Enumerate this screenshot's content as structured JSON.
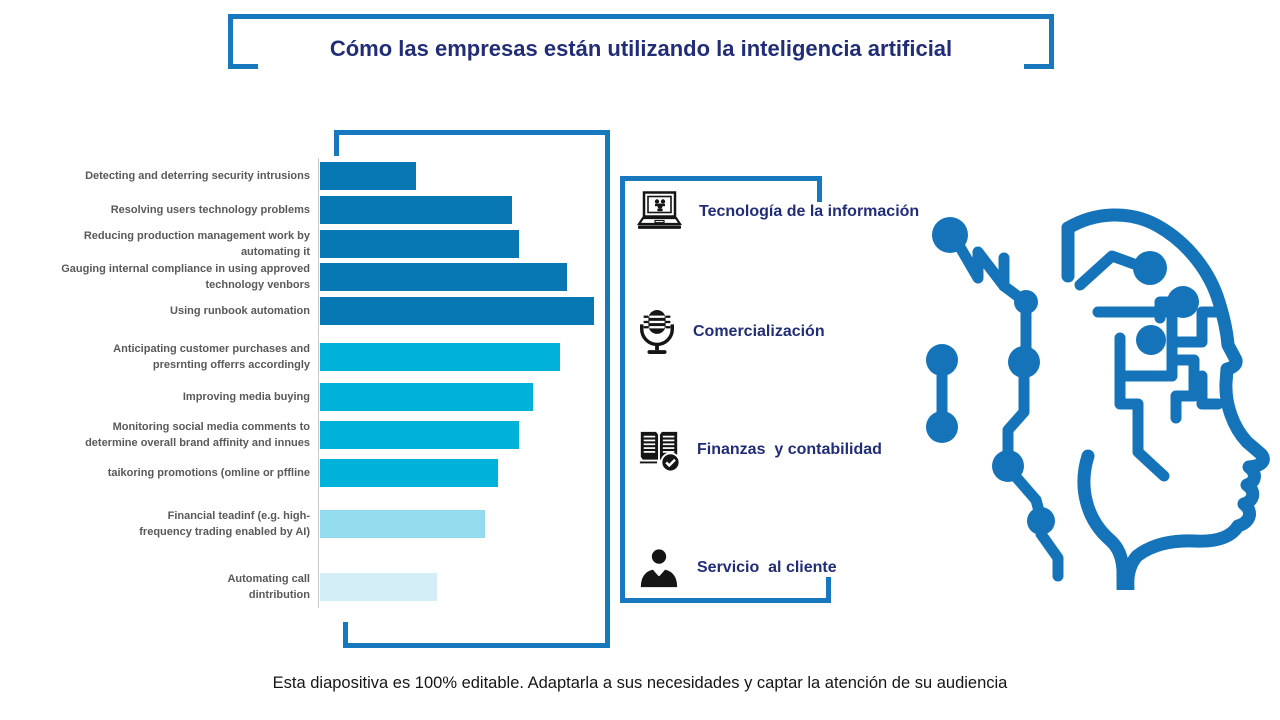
{
  "slide": {
    "title": "Cómo las empresas están utilizando la inteligencia artificial",
    "footer": "Esta diapositiva es 100% editable. Adaptarla a sus necesidades y captar la atención de su audiencia"
  },
  "legend": {
    "items": [
      {
        "icon": "laptop-icon",
        "label": "Tecnología de la información"
      },
      {
        "icon": "microphone-icon",
        "label": "Comercialización"
      },
      {
        "icon": "ledger-check-icon",
        "label": "Finanzas  y contabilidad"
      },
      {
        "icon": "businessman-icon",
        "label": "Servicio  al cliente"
      }
    ]
  },
  "graphics": {
    "head_graphic": "ai-head-circuit-graphic"
  },
  "colors": {
    "frame_blue": "#1878BE",
    "title_navy": "#212D77",
    "label_gray": "#595959",
    "bar_it": "#0778B4",
    "bar_marketing": "#00B2D9",
    "bar_finance": "#92DCEE",
    "bar_service": "#D4EEF8",
    "head_blue": "#1574B9"
  },
  "chart_data": {
    "type": "bar",
    "orientation": "horizontal",
    "title": "Cómo las empresas están utilizando la inteligencia artificial",
    "xlabel": "",
    "ylabel": "",
    "xlim": [
      0,
      42
    ],
    "grid": false,
    "legend_position": "right",
    "categories": [
      "Detecting and deterring security intrusions",
      "Resolving users technology problems",
      "Reducing production management work by\nautomating it",
      "Gauging internal compliance in using approved\ntechnology venbors",
      "Using runbook automation",
      "Anticipating customer purchases and\npresrnting offerrs accordingly",
      "Improving media buying",
      "Monitoring social media comments to\ndetermine overall brand affinity and innues",
      "taikoring promotions (omline or pffline",
      "Financial  teadinf (e.g. high-\nfrequency trading enabled by AI)",
      "Automating call\ndintribution"
    ],
    "values": [
      14,
      28,
      29,
      36,
      40,
      35,
      31,
      29,
      26,
      24,
      17
    ],
    "series_groups": [
      {
        "name": "Tecnología de la información",
        "category_indices": [
          0,
          1,
          2,
          3,
          4
        ],
        "color": "#0778B4"
      },
      {
        "name": "Comercialización",
        "category_indices": [
          5,
          6,
          7,
          8
        ],
        "color": "#00B2D9"
      },
      {
        "name": "Finanzas y contabilidad",
        "category_indices": [
          9
        ],
        "color": "#92DCEE"
      },
      {
        "name": "Servicio al cliente",
        "category_indices": [
          10
        ],
        "color": "#D4EEF8"
      }
    ]
  }
}
